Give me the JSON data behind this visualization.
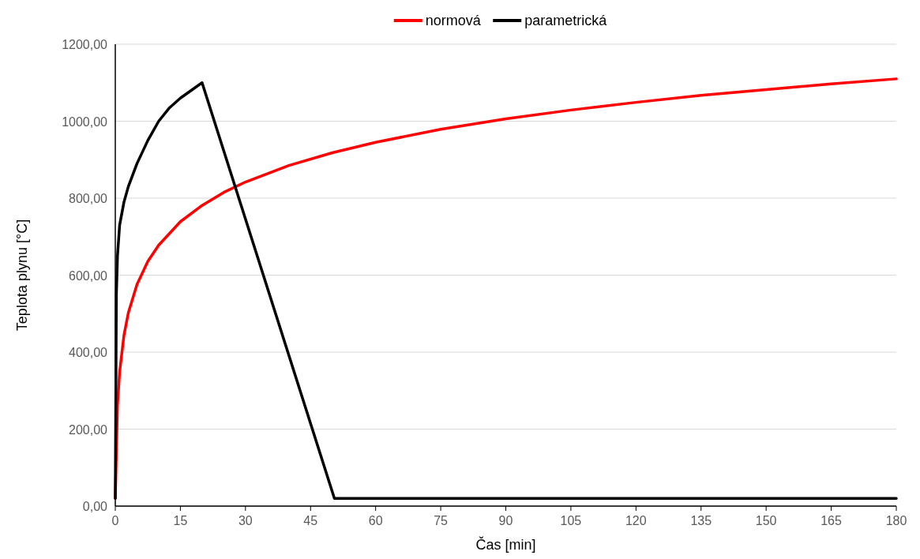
{
  "chart_data": {
    "type": "line",
    "xlabel": "Čas [min]",
    "ylabel": "Teplota plynu [°C]",
    "xlim": [
      0,
      180
    ],
    "xticks": [
      0,
      15,
      30,
      45,
      60,
      75,
      90,
      105,
      120,
      135,
      150,
      165,
      180
    ],
    "ylim": [
      0,
      1200
    ],
    "yticks": [
      {
        "value": 0,
        "label": "0,00"
      },
      {
        "value": 200,
        "label": "200,00"
      },
      {
        "value": 400,
        "label": "400,00"
      },
      {
        "value": 600,
        "label": "600,00"
      },
      {
        "value": 800,
        "label": "800,00"
      },
      {
        "value": 1000,
        "label": "1000,00"
      },
      {
        "value": 1200,
        "label": "1200,00"
      }
    ],
    "grid": "y",
    "legend": "top",
    "marker": "none",
    "line_style": "solid",
    "series": [
      {
        "name": "normová",
        "color": "#ff0000",
        "x": [
          0,
          0.5,
          1,
          2,
          3,
          5,
          7.5,
          10,
          15,
          20,
          25,
          30,
          40,
          50,
          60,
          75,
          90,
          105,
          120,
          135,
          150,
          165,
          180
        ],
        "values": [
          20,
          261,
          349,
          444,
          502,
          576,
          636,
          678,
          739,
          781,
          815,
          842,
          885,
          918,
          945,
          979,
          1006,
          1029,
          1049,
          1067,
          1082,
          1097,
          1110
        ]
      },
      {
        "name": "parametrická",
        "color": "#000000",
        "x": [
          0,
          0.25,
          0.5,
          1,
          2,
          3,
          5,
          7.5,
          10,
          12.5,
          15,
          17.5,
          20,
          50.5,
          180
        ],
        "values": [
          20,
          550,
          650,
          730,
          790,
          830,
          890,
          950,
          1000,
          1035,
          1060,
          1080,
          1100,
          20,
          20
        ]
      }
    ]
  }
}
